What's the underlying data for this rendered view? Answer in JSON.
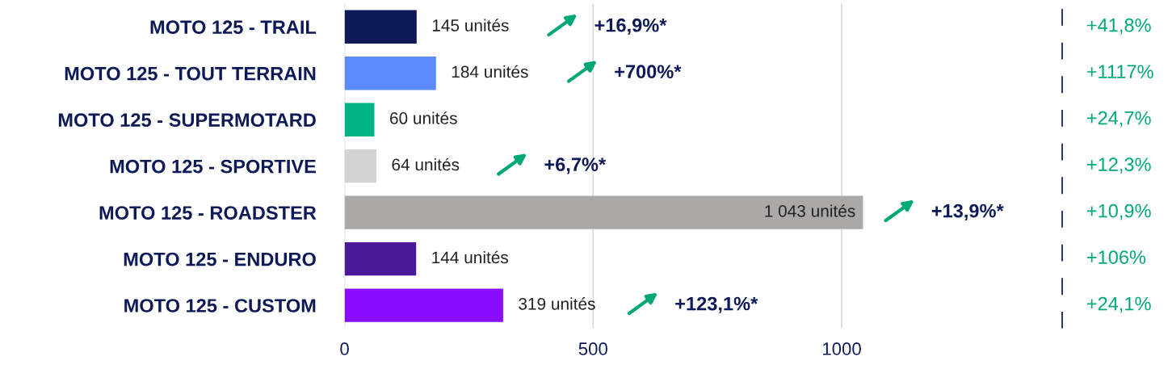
{
  "chart_data": {
    "type": "bar",
    "orientation": "horizontal",
    "categories": [
      "MOTO 125 - TRAIL",
      "MOTO 125 - TOUT TERRAIN",
      "MOTO 125 - SUPERMOTARD",
      "MOTO 125 - SPORTIVE",
      "MOTO 125 - ROADSTER",
      "MOTO 125 - ENDURO",
      "MOTO 125 - CUSTOM"
    ],
    "values": [
      145,
      184,
      60,
      64,
      1043,
      144,
      319
    ],
    "colors": [
      "#0d1a57",
      "#5b8bff",
      "#00b386",
      "#d3d3d3",
      "#aba8a8",
      "#4a1a9a",
      "#8a0cff"
    ],
    "value_labels": [
      "145 unités",
      "184 unités",
      "60 unités",
      "64 unités",
      "1 043 unités",
      "144 unités",
      "319 unités"
    ],
    "xlim": [
      0,
      1445
    ],
    "xticks": [
      0,
      500,
      1000
    ],
    "grid": "x",
    "ref_lines": [
      {
        "axis": "x",
        "value": 1445,
        "color": "#0d1a57",
        "line_style": "dashed"
      }
    ],
    "annotations": [
      "+16,9%*",
      "+700%*",
      "+6,7%*",
      "+13,9%*",
      "+123,1%*",
      "+41,8%",
      "+1117%",
      "+24,7%",
      "+12,3%",
      "+10,9%",
      "+106%",
      "+24,1%"
    ]
  }
}
